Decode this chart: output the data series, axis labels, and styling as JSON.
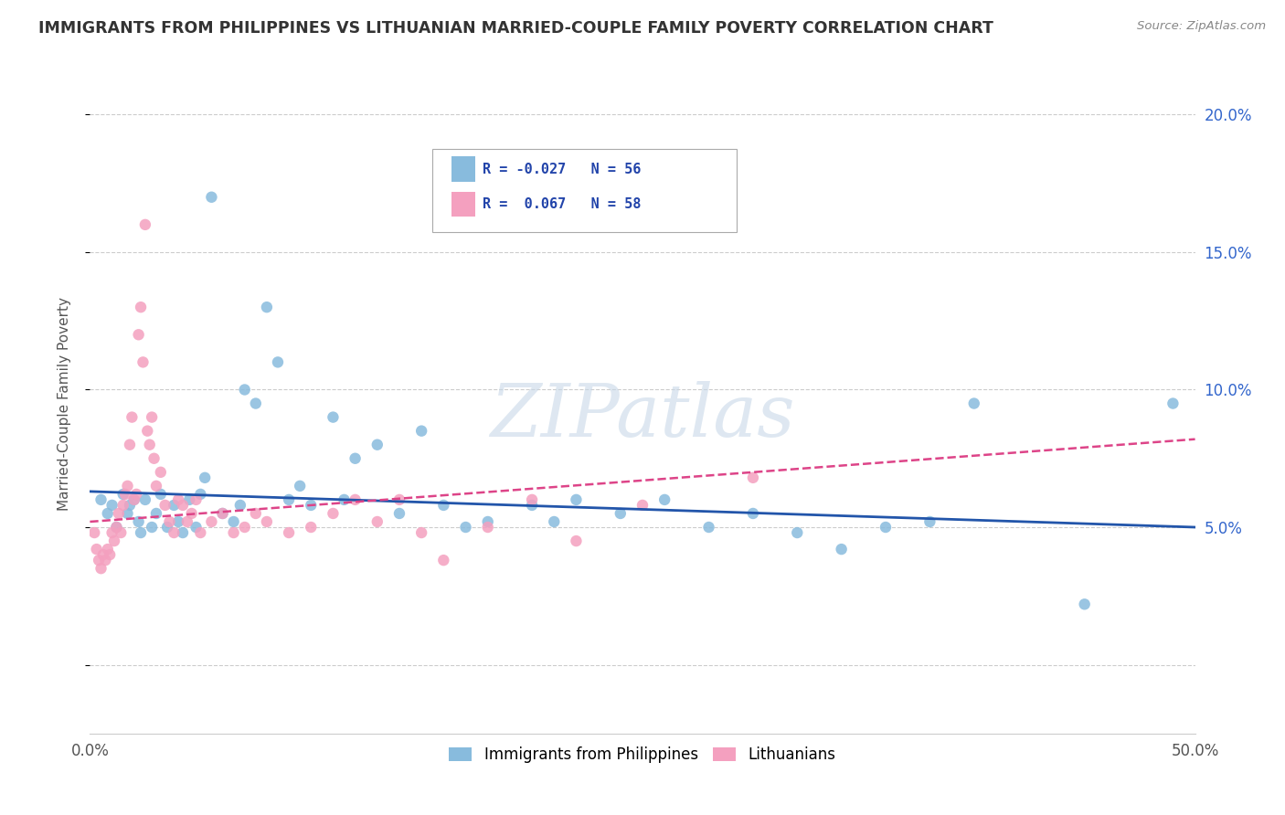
{
  "title": "IMMIGRANTS FROM PHILIPPINES VS LITHUANIAN MARRIED-COUPLE FAMILY POVERTY CORRELATION CHART",
  "source": "Source: ZipAtlas.com",
  "ylabel": "Married-Couple Family Poverty",
  "x_min": 0.0,
  "x_max": 0.5,
  "y_min": -0.025,
  "y_max": 0.215,
  "yticks": [
    0.0,
    0.05,
    0.1,
    0.15,
    0.2
  ],
  "ytick_labels_right": [
    "",
    "5.0%",
    "10.0%",
    "15.0%",
    "20.0%"
  ],
  "legend_blue_text": "R = -0.027   N = 56",
  "legend_pink_text": "R =  0.067   N = 58",
  "legend_blue_label": "Immigrants from Philippines",
  "legend_pink_label": "Lithuanians",
  "blue_color": "#88bbdd",
  "pink_color": "#f4a0bf",
  "blue_line_color": "#2255aa",
  "pink_line_color": "#dd4488",
  "watermark_text": "ZIPatlas",
  "blue_scatter_x": [
    0.005,
    0.008,
    0.01,
    0.012,
    0.015,
    0.017,
    0.018,
    0.02,
    0.022,
    0.023,
    0.025,
    0.028,
    0.03,
    0.032,
    0.035,
    0.038,
    0.04,
    0.042,
    0.045,
    0.048,
    0.05,
    0.052,
    0.055,
    0.06,
    0.065,
    0.068,
    0.07,
    0.075,
    0.08,
    0.085,
    0.09,
    0.095,
    0.1,
    0.11,
    0.115,
    0.12,
    0.13,
    0.14,
    0.15,
    0.16,
    0.17,
    0.18,
    0.2,
    0.21,
    0.22,
    0.24,
    0.26,
    0.28,
    0.3,
    0.32,
    0.34,
    0.36,
    0.38,
    0.4,
    0.45,
    0.49
  ],
  "blue_scatter_y": [
    0.06,
    0.055,
    0.058,
    0.05,
    0.062,
    0.055,
    0.058,
    0.06,
    0.052,
    0.048,
    0.06,
    0.05,
    0.055,
    0.062,
    0.05,
    0.058,
    0.052,
    0.048,
    0.06,
    0.05,
    0.062,
    0.068,
    0.17,
    0.055,
    0.052,
    0.058,
    0.1,
    0.095,
    0.13,
    0.11,
    0.06,
    0.065,
    0.058,
    0.09,
    0.06,
    0.075,
    0.08,
    0.055,
    0.085,
    0.058,
    0.05,
    0.052,
    0.058,
    0.052,
    0.06,
    0.055,
    0.06,
    0.05,
    0.055,
    0.048,
    0.042,
    0.05,
    0.052,
    0.095,
    0.022,
    0.095
  ],
  "pink_scatter_x": [
    0.002,
    0.003,
    0.004,
    0.005,
    0.006,
    0.007,
    0.008,
    0.009,
    0.01,
    0.011,
    0.012,
    0.013,
    0.014,
    0.015,
    0.016,
    0.017,
    0.018,
    0.019,
    0.02,
    0.021,
    0.022,
    0.023,
    0.024,
    0.025,
    0.026,
    0.027,
    0.028,
    0.029,
    0.03,
    0.032,
    0.034,
    0.036,
    0.038,
    0.04,
    0.042,
    0.044,
    0.046,
    0.048,
    0.05,
    0.055,
    0.06,
    0.065,
    0.07,
    0.075,
    0.08,
    0.09,
    0.1,
    0.11,
    0.12,
    0.13,
    0.14,
    0.15,
    0.16,
    0.18,
    0.2,
    0.22,
    0.25,
    0.3
  ],
  "pink_scatter_y": [
    0.048,
    0.042,
    0.038,
    0.035,
    0.04,
    0.038,
    0.042,
    0.04,
    0.048,
    0.045,
    0.05,
    0.055,
    0.048,
    0.058,
    0.062,
    0.065,
    0.08,
    0.09,
    0.06,
    0.062,
    0.12,
    0.13,
    0.11,
    0.16,
    0.085,
    0.08,
    0.09,
    0.075,
    0.065,
    0.07,
    0.058,
    0.052,
    0.048,
    0.06,
    0.058,
    0.052,
    0.055,
    0.06,
    0.048,
    0.052,
    0.055,
    0.048,
    0.05,
    0.055,
    0.052,
    0.048,
    0.05,
    0.055,
    0.06,
    0.052,
    0.06,
    0.048,
    0.038,
    0.05,
    0.06,
    0.045,
    0.058,
    0.068
  ]
}
